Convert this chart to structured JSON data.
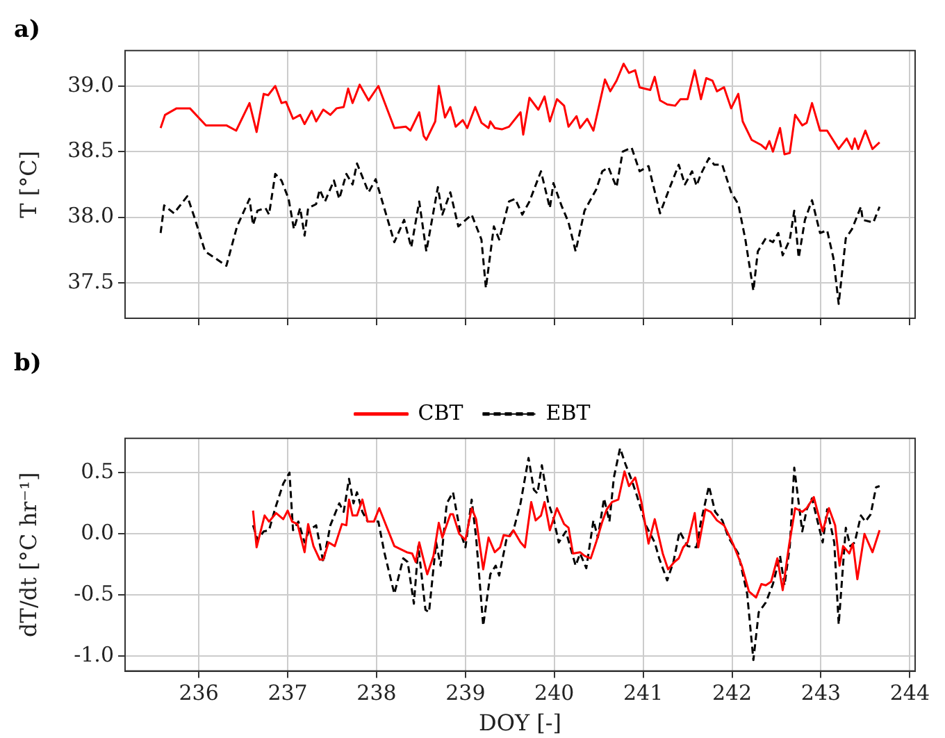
{
  "chart_data": [
    {
      "type": "line",
      "title": "a)",
      "ylabel": "T [°C]",
      "xlim": [
        235.17,
        244.06
      ],
      "xticks": [
        236,
        237,
        238,
        239,
        240,
        241,
        242,
        243,
        244
      ],
      "ylim": [
        37.23,
        39.27
      ],
      "yticks": [
        37.5,
        {
          "value": 38,
          "label": "38.0"
        },
        38.5,
        {
          "value": 39,
          "label": "39.0"
        }
      ],
      "grid": true,
      "legend": false,
      "tick_labels": "y",
      "marker": "none",
      "series": [
        {
          "color": "#ff0000",
          "line_style": "solid",
          "x": [
            235.57,
            235.62,
            235.75,
            235.9,
            236.08,
            236.31,
            236.42,
            236.57,
            236.65,
            236.73,
            236.78,
            236.86,
            236.93,
            236.98,
            237.06,
            237.14,
            237.19,
            237.27,
            237.32,
            237.4,
            237.48,
            237.55,
            237.63,
            237.68,
            237.73,
            237.81,
            237.91,
            238.02,
            238.2,
            238.33,
            238.38,
            238.48,
            238.53,
            238.56,
            238.66,
            238.7,
            238.77,
            238.83,
            238.89,
            238.97,
            239.02,
            239.11,
            239.18,
            239.26,
            239.28,
            239.33,
            239.41,
            239.49,
            239.62,
            239.65,
            239.72,
            239.82,
            239.89,
            239.95,
            240.03,
            240.11,
            240.16,
            240.25,
            240.29,
            240.37,
            240.44,
            240.57,
            240.63,
            240.7,
            240.78,
            240.84,
            240.91,
            240.96,
            241.08,
            241.13,
            241.19,
            241.27,
            241.36,
            241.42,
            241.5,
            241.58,
            241.65,
            241.71,
            241.78,
            241.83,
            241.91,
            241.99,
            242.07,
            242.12,
            242.22,
            242.33,
            242.38,
            242.42,
            242.46,
            242.54,
            242.59,
            242.65,
            242.71,
            242.79,
            242.84,
            242.9,
            242.99,
            243.07,
            243.2,
            243.29,
            243.35,
            243.38,
            243.42,
            243.5,
            243.58,
            243.66
          ],
          "values": [
            38.68,
            38.78,
            38.83,
            38.83,
            38.7,
            38.7,
            38.66,
            38.87,
            38.65,
            38.94,
            38.93,
            39.0,
            38.87,
            38.88,
            38.75,
            38.78,
            38.71,
            38.81,
            38.73,
            38.82,
            38.78,
            38.83,
            38.84,
            38.98,
            38.87,
            39.01,
            38.89,
            39.0,
            38.68,
            38.69,
            38.66,
            38.8,
            38.62,
            38.59,
            38.73,
            39.0,
            38.76,
            38.84,
            38.69,
            38.74,
            38.68,
            38.84,
            38.72,
            38.68,
            38.73,
            38.68,
            38.67,
            38.69,
            38.8,
            38.63,
            38.91,
            38.82,
            38.92,
            38.73,
            38.9,
            38.85,
            38.69,
            38.77,
            38.68,
            38.75,
            38.66,
            39.05,
            38.96,
            39.04,
            39.17,
            39.1,
            39.12,
            38.99,
            38.97,
            39.07,
            38.89,
            38.86,
            38.85,
            38.9,
            38.9,
            39.12,
            38.9,
            39.06,
            39.04,
            38.96,
            38.99,
            38.83,
            38.94,
            38.73,
            38.59,
            38.55,
            38.52,
            38.58,
            38.5,
            38.68,
            38.48,
            38.49,
            38.78,
            38.7,
            38.72,
            38.87,
            38.66,
            38.66,
            38.52,
            38.6,
            38.52,
            38.6,
            38.52,
            38.66,
            38.52,
            38.57
          ]
        },
        {
          "color": "#000000",
          "line_style": "dashed",
          "x": [
            235.57,
            235.61,
            235.72,
            235.87,
            235.95,
            236.07,
            236.31,
            236.43,
            236.57,
            236.61,
            236.66,
            236.75,
            236.79,
            236.86,
            236.93,
            237.01,
            237.07,
            237.14,
            237.19,
            237.23,
            237.32,
            237.36,
            237.42,
            237.52,
            237.58,
            237.66,
            237.73,
            237.78,
            237.91,
            237.99,
            238.2,
            238.31,
            238.39,
            238.48,
            238.56,
            238.69,
            238.74,
            238.83,
            238.92,
            239.07,
            239.18,
            239.23,
            239.32,
            239.38,
            239.49,
            239.56,
            239.64,
            239.72,
            239.85,
            239.95,
            239.99,
            240.08,
            240.16,
            240.24,
            240.34,
            240.47,
            240.54,
            240.61,
            240.65,
            240.7,
            240.77,
            240.87,
            240.96,
            241.06,
            241.19,
            241.29,
            241.4,
            241.47,
            241.55,
            241.6,
            241.65,
            241.74,
            241.8,
            241.89,
            241.99,
            242.07,
            242.15,
            242.24,
            242.29,
            242.38,
            242.46,
            242.52,
            242.57,
            242.65,
            242.7,
            242.75,
            242.82,
            242.9,
            242.99,
            243.07,
            243.14,
            243.2,
            243.28,
            243.35,
            243.45,
            243.47,
            243.59,
            243.66
          ],
          "values": [
            37.88,
            38.09,
            38.03,
            38.16,
            38.0,
            37.74,
            37.63,
            37.93,
            38.14,
            37.94,
            38.05,
            38.07,
            38.02,
            38.33,
            38.28,
            38.14,
            37.91,
            38.07,
            37.86,
            38.07,
            38.1,
            38.21,
            38.12,
            38.28,
            38.14,
            38.33,
            38.25,
            38.41,
            38.19,
            38.29,
            37.81,
            37.98,
            37.77,
            38.12,
            37.74,
            38.23,
            38.02,
            38.19,
            37.93,
            38.02,
            37.83,
            37.46,
            37.93,
            37.83,
            38.12,
            38.14,
            38.02,
            38.12,
            38.35,
            38.07,
            38.26,
            38.09,
            37.96,
            37.74,
            38.05,
            38.21,
            38.35,
            38.38,
            38.31,
            38.23,
            38.5,
            38.53,
            38.35,
            38.39,
            38.03,
            38.21,
            38.4,
            38.25,
            38.35,
            38.24,
            38.33,
            38.45,
            38.4,
            38.4,
            38.19,
            38.1,
            37.83,
            37.44,
            37.74,
            37.84,
            37.81,
            37.88,
            37.71,
            37.83,
            38.05,
            37.69,
            37.98,
            38.13,
            37.88,
            37.9,
            37.69,
            37.34,
            37.84,
            37.91,
            38.08,
            37.98,
            37.96,
            38.08
          ]
        }
      ]
    },
    {
      "type": "line",
      "title": "b)",
      "xlabel": "DOY [-]",
      "ylabel": "dT/dt [°C hr⁻¹]",
      "xlim": [
        235.17,
        244.06
      ],
      "xticks": [
        236,
        237,
        238,
        239,
        240,
        241,
        242,
        243,
        244
      ],
      "ylim": [
        -1.12,
        0.78
      ],
      "yticks": [
        {
          "value": -1,
          "label": "-1.0"
        },
        -0.5,
        {
          "value": 0,
          "label": "0.0"
        },
        0.5
      ],
      "grid": true,
      "legend": "top",
      "marker": "none",
      "series": [
        {
          "name": "CBT",
          "color": "#ff0000",
          "line_style": "solid",
          "x": [
            236.61,
            236.65,
            236.74,
            236.79,
            236.87,
            236.95,
            237.0,
            237.05,
            237.11,
            237.19,
            237.23,
            237.29,
            237.36,
            237.4,
            237.46,
            237.53,
            237.61,
            237.66,
            237.69,
            237.73,
            237.78,
            237.84,
            237.9,
            237.97,
            238.03,
            238.2,
            238.34,
            238.4,
            238.44,
            238.48,
            238.57,
            238.64,
            238.7,
            238.74,
            238.83,
            238.86,
            238.93,
            239.0,
            239.07,
            239.12,
            239.2,
            239.26,
            239.33,
            239.39,
            239.43,
            239.5,
            239.54,
            239.62,
            239.67,
            239.74,
            239.79,
            239.85,
            239.89,
            239.95,
            240.03,
            240.11,
            240.16,
            240.21,
            240.29,
            240.34,
            240.41,
            240.47,
            240.54,
            240.59,
            240.65,
            240.72,
            240.79,
            240.84,
            240.91,
            240.98,
            241.06,
            241.13,
            241.22,
            241.28,
            241.35,
            241.4,
            241.45,
            241.5,
            241.58,
            241.62,
            241.7,
            241.76,
            241.83,
            241.91,
            242.01,
            242.11,
            242.19,
            242.27,
            242.33,
            242.38,
            242.44,
            242.51,
            242.57,
            242.64,
            242.71,
            242.79,
            242.84,
            242.92,
            243.02,
            243.09,
            243.16,
            243.21,
            243.25,
            243.32,
            243.36,
            243.41,
            243.49,
            243.58,
            243.66
          ],
          "values": [
            0.19,
            -0.11,
            0.15,
            0.1,
            0.17,
            0.12,
            0.19,
            0.1,
            0.08,
            -0.15,
            0.08,
            -0.1,
            -0.21,
            -0.21,
            -0.07,
            -0.1,
            0.08,
            0.07,
            0.28,
            0.15,
            0.15,
            0.28,
            0.1,
            0.1,
            0.21,
            -0.1,
            -0.15,
            -0.16,
            -0.23,
            -0.07,
            -0.33,
            -0.18,
            0.09,
            -0.03,
            0.16,
            0.16,
            0.0,
            -0.05,
            0.21,
            0.12,
            -0.29,
            -0.03,
            -0.15,
            -0.11,
            -0.01,
            -0.02,
            0.03,
            -0.07,
            -0.11,
            0.26,
            0.11,
            0.15,
            0.26,
            0.03,
            0.21,
            0.08,
            0.05,
            -0.16,
            -0.15,
            -0.18,
            -0.2,
            -0.07,
            0.1,
            0.2,
            0.26,
            0.28,
            0.51,
            0.39,
            0.46,
            0.26,
            -0.08,
            0.12,
            -0.16,
            -0.29,
            -0.23,
            -0.2,
            -0.11,
            -0.07,
            0.17,
            -0.11,
            0.2,
            0.18,
            0.11,
            0.07,
            -0.08,
            -0.26,
            -0.47,
            -0.52,
            -0.41,
            -0.42,
            -0.39,
            -0.2,
            -0.46,
            -0.1,
            0.21,
            0.18,
            0.21,
            0.3,
            0.02,
            0.21,
            0.07,
            -0.26,
            -0.1,
            -0.16,
            -0.08,
            -0.37,
            0.0,
            -0.15,
            0.03
          ]
        },
        {
          "name": "EBT",
          "color": "#000000",
          "line_style": "dashed",
          "x": [
            236.61,
            236.66,
            236.73,
            236.79,
            236.86,
            236.95,
            237.02,
            237.06,
            237.12,
            237.19,
            237.24,
            237.32,
            237.4,
            237.48,
            237.58,
            237.63,
            237.69,
            237.74,
            237.78,
            237.84,
            237.9,
            238.02,
            238.09,
            238.2,
            238.3,
            238.35,
            238.42,
            238.47,
            238.55,
            238.59,
            238.67,
            238.72,
            238.79,
            238.86,
            238.94,
            239.0,
            239.07,
            239.12,
            239.2,
            239.28,
            239.34,
            239.38,
            239.46,
            239.54,
            239.62,
            239.71,
            239.77,
            239.81,
            239.86,
            239.93,
            239.99,
            240.05,
            240.13,
            240.24,
            240.29,
            240.36,
            240.44,
            240.49,
            240.56,
            240.62,
            240.67,
            240.74,
            240.8,
            240.87,
            240.93,
            241.03,
            241.13,
            241.18,
            241.27,
            241.34,
            241.41,
            241.5,
            241.6,
            241.65,
            241.74,
            241.81,
            241.89,
            241.96,
            242.07,
            242.17,
            242.24,
            242.3,
            242.38,
            242.46,
            242.54,
            242.59,
            242.65,
            242.7,
            242.79,
            242.84,
            242.9,
            242.96,
            243.02,
            243.07,
            243.15,
            243.2,
            243.28,
            243.33,
            243.38,
            243.45,
            243.5,
            243.56,
            243.62,
            243.66
          ],
          "values": [
            0.07,
            -0.05,
            0.02,
            0.03,
            0.21,
            0.41,
            0.5,
            0.03,
            0.1,
            -0.07,
            0.03,
            0.07,
            -0.23,
            0.07,
            0.25,
            0.18,
            0.45,
            0.25,
            0.34,
            0.18,
            0.1,
            0.1,
            -0.16,
            -0.49,
            -0.2,
            -0.23,
            -0.57,
            -0.1,
            -0.62,
            -0.64,
            -0.07,
            -0.26,
            0.25,
            0.34,
            0.02,
            -0.11,
            0.28,
            -0.03,
            -0.75,
            -0.33,
            -0.26,
            -0.34,
            -0.05,
            0.03,
            0.25,
            0.62,
            0.36,
            0.33,
            0.56,
            0.26,
            0.13,
            -0.07,
            0.02,
            -0.26,
            -0.16,
            -0.28,
            0.11,
            -0.03,
            0.29,
            0.1,
            0.46,
            0.7,
            0.57,
            0.44,
            0.31,
            0.07,
            -0.07,
            -0.2,
            -0.38,
            -0.23,
            0.02,
            -0.1,
            -0.11,
            0.1,
            0.39,
            0.18,
            0.11,
            -0.03,
            -0.16,
            -0.49,
            -1.03,
            -0.64,
            -0.56,
            -0.41,
            -0.18,
            -0.42,
            -0.1,
            0.54,
            0.02,
            0.2,
            0.29,
            0.11,
            -0.07,
            0.2,
            -0.07,
            -0.74,
            0.05,
            -0.1,
            -0.07,
            0.15,
            0.1,
            0.16,
            0.38,
            0.39
          ]
        }
      ]
    }
  ]
}
